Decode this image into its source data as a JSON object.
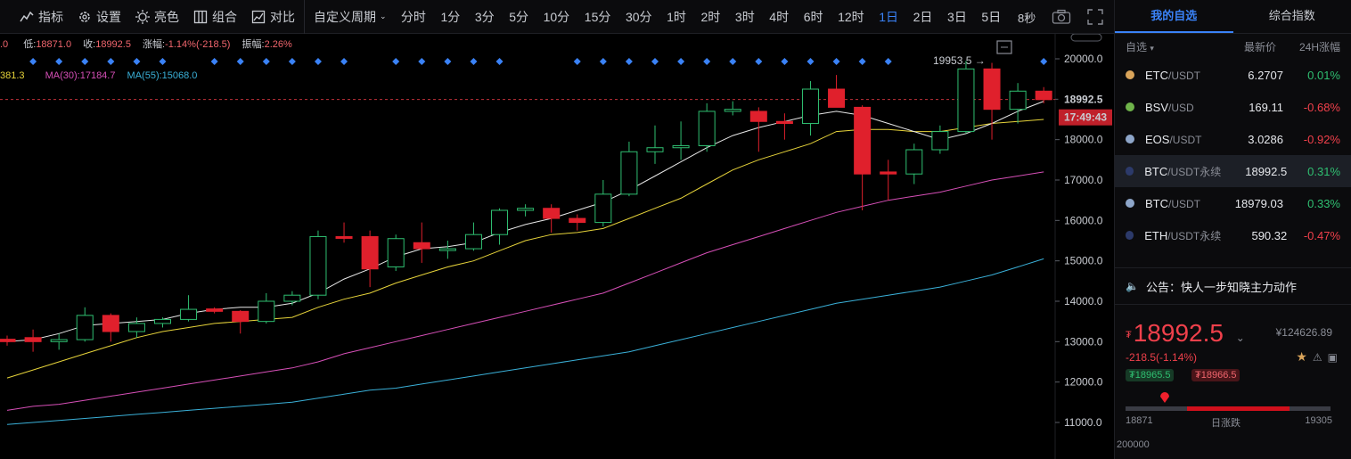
{
  "toolbar": {
    "buttons": [
      {
        "label": "指标",
        "icon": "indicator-icon"
      },
      {
        "label": "设置",
        "icon": "gear-icon"
      },
      {
        "label": "亮色",
        "icon": "sun-icon"
      },
      {
        "label": "组合",
        "icon": "layout-icon"
      },
      {
        "label": "对比",
        "icon": "compare-icon"
      }
    ],
    "custom_period": "自定义周期",
    "periods": [
      "分时",
      "1分",
      "3分",
      "5分",
      "10分",
      "15分",
      "30分",
      "1时",
      "2时",
      "3时",
      "4时",
      "6时",
      "12时",
      "1日",
      "2日",
      "3日",
      "5日"
    ],
    "active_period": "1日",
    "refresh": "8秒"
  },
  "info": {
    "open_tail": ".0",
    "low_label": "低:",
    "low": "18871.0",
    "close_label": "收:",
    "close": "18992.5",
    "chg_label": "涨幅:",
    "chg": "-1.14%(-218.5)",
    "amp_label": "振幅:",
    "amp": "2.26%"
  },
  "ma_legend": [
    {
      "text": "381.3",
      "color": "#e6d33a"
    },
    {
      "text": "MA(30):17184.7",
      "color": "#d64fb7"
    },
    {
      "text": "MA(55):15068.0",
      "color": "#3ab0d8"
    }
  ],
  "chart_data": {
    "type": "candlestick",
    "y_ticks": [
      "20000.0",
      "19000.0",
      "18000.0",
      "17000.0",
      "16000.0",
      "15000.0",
      "14000.0",
      "13000.0",
      "12000.0",
      "11000.0"
    ],
    "ylim": [
      10600,
      20250
    ],
    "current_price": "18992.5",
    "countdown": "17:49:43",
    "high_annotation": "19953.5",
    "candles": [
      {
        "o": 13060,
        "h": 13150,
        "l": 12900,
        "c": 13000
      },
      {
        "o": 13100,
        "h": 13300,
        "l": 12750,
        "c": 13000
      },
      {
        "o": 13000,
        "h": 13200,
        "l": 12800,
        "c": 13050
      },
      {
        "o": 13050,
        "h": 13850,
        "l": 13000,
        "c": 13650
      },
      {
        "o": 13650,
        "h": 13700,
        "l": 13000,
        "c": 13250
      },
      {
        "o": 13250,
        "h": 13600,
        "l": 13100,
        "c": 13450
      },
      {
        "o": 13450,
        "h": 13600,
        "l": 13350,
        "c": 13550
      },
      {
        "o": 13550,
        "h": 14150,
        "l": 13500,
        "c": 13800
      },
      {
        "o": 13810,
        "h": 13850,
        "l": 13700,
        "c": 13750
      },
      {
        "o": 13750,
        "h": 13780,
        "l": 13200,
        "c": 13500
      },
      {
        "o": 13500,
        "h": 14200,
        "l": 13450,
        "c": 14000
      },
      {
        "o": 14000,
        "h": 14250,
        "l": 13900,
        "c": 14150
      },
      {
        "o": 14150,
        "h": 15750,
        "l": 14050,
        "c": 15600
      },
      {
        "o": 15600,
        "h": 15950,
        "l": 15450,
        "c": 15580
      },
      {
        "o": 15600,
        "h": 15750,
        "l": 14350,
        "c": 14800
      },
      {
        "o": 14850,
        "h": 15650,
        "l": 14750,
        "c": 15550
      },
      {
        "o": 15450,
        "h": 15950,
        "l": 14950,
        "c": 15300
      },
      {
        "o": 15300,
        "h": 15500,
        "l": 15050,
        "c": 15300
      },
      {
        "o": 15300,
        "h": 15950,
        "l": 15250,
        "c": 15650
      },
      {
        "o": 15650,
        "h": 16300,
        "l": 15400,
        "c": 16250
      },
      {
        "o": 16250,
        "h": 16400,
        "l": 16100,
        "c": 16300
      },
      {
        "o": 16300,
        "h": 16400,
        "l": 15700,
        "c": 16050
      },
      {
        "o": 16050,
        "h": 16150,
        "l": 15750,
        "c": 15950
      },
      {
        "o": 15950,
        "h": 17000,
        "l": 15850,
        "c": 16650
      },
      {
        "o": 16650,
        "h": 17950,
        "l": 16600,
        "c": 17700
      },
      {
        "o": 17700,
        "h": 18350,
        "l": 17400,
        "c": 17800
      },
      {
        "o": 17800,
        "h": 18450,
        "l": 17500,
        "c": 17850
      },
      {
        "o": 17850,
        "h": 18900,
        "l": 17700,
        "c": 18700
      },
      {
        "o": 18700,
        "h": 18950,
        "l": 18600,
        "c": 18750
      },
      {
        "o": 18700,
        "h": 18800,
        "l": 17700,
        "c": 18450
      },
      {
        "o": 18450,
        "h": 18650,
        "l": 18000,
        "c": 18400
      },
      {
        "o": 18400,
        "h": 19450,
        "l": 18100,
        "c": 19250
      },
      {
        "o": 19250,
        "h": 19600,
        "l": 18800,
        "c": 18800
      },
      {
        "o": 18800,
        "h": 18850,
        "l": 16250,
        "c": 17150
      },
      {
        "o": 17200,
        "h": 17500,
        "l": 16500,
        "c": 17150
      },
      {
        "o": 17150,
        "h": 17900,
        "l": 16900,
        "c": 17750
      },
      {
        "o": 17750,
        "h": 18350,
        "l": 17650,
        "c": 18200
      },
      {
        "o": 18200,
        "h": 19950,
        "l": 18150,
        "c": 19750
      },
      {
        "o": 19750,
        "h": 19900,
        "l": 18000,
        "c": 18750
      },
      {
        "o": 18750,
        "h": 19400,
        "l": 18400,
        "c": 19200
      },
      {
        "o": 19200,
        "h": 19300,
        "l": 18900,
        "c": 18990
      }
    ],
    "ma_short": [
      13000,
      13050,
      13200,
      13400,
      13450,
      13500,
      13550,
      13700,
      13800,
      13850,
      13850,
      13950,
      14200,
      14550,
      14800,
      15100,
      15300,
      15350,
      15450,
      15700,
      15900,
      16050,
      16250,
      16450,
      16750,
      17100,
      17450,
      17800,
      18100,
      18300,
      18450,
      18600,
      18700,
      18600,
      18400,
      18200,
      18000,
      18150,
      18400,
      18700,
      18950
    ],
    "ma_mid": [
      12100,
      12300,
      12500,
      12700,
      12900,
      13100,
      13250,
      13350,
      13450,
      13500,
      13550,
      13600,
      13850,
      14050,
      14200,
      14450,
      14650,
      14850,
      15000,
      15250,
      15500,
      15650,
      15700,
      15800,
      16050,
      16300,
      16550,
      16900,
      17250,
      17500,
      17700,
      17900,
      18200,
      18250,
      18250,
      18200,
      18200,
      18300,
      18400,
      18450,
      18500
    ],
    "ma30": [
      11300,
      11400,
      11450,
      11550,
      11650,
      11750,
      11850,
      11950,
      12050,
      12150,
      12250,
      12350,
      12500,
      12700,
      12850,
      13000,
      13150,
      13300,
      13450,
      13600,
      13750,
      13900,
      14050,
      14200,
      14450,
      14700,
      14950,
      15200,
      15400,
      15600,
      15800,
      16000,
      16200,
      16350,
      16500,
      16600,
      16700,
      16850,
      17000,
      17100,
      17200
    ],
    "ma55": [
      10950,
      11000,
      11050,
      11100,
      11150,
      11200,
      11250,
      11300,
      11350,
      11400,
      11450,
      11500,
      11600,
      11700,
      11800,
      11850,
      11950,
      12050,
      12150,
      12250,
      12350,
      12450,
      12550,
      12650,
      12750,
      12900,
      13050,
      13200,
      13350,
      13500,
      13650,
      13800,
      13950,
      14050,
      14150,
      14250,
      14350,
      14500,
      14650,
      14850,
      15050
    ],
    "signal_markers": [
      1,
      2,
      3,
      4,
      5,
      6,
      8,
      9,
      10,
      11,
      12,
      13,
      15,
      16,
      17,
      18,
      19,
      22,
      23,
      24,
      25,
      26,
      27,
      28,
      29,
      30,
      31,
      32,
      33,
      34,
      40
    ]
  },
  "panel": {
    "tabs": [
      "我的自选",
      "综合指数"
    ],
    "active_tab": "我的自选",
    "list_header": {
      "name": "自选",
      "price": "最新价",
      "change": "24H涨幅"
    },
    "rows": [
      {
        "base": "ETC",
        "quote": "/USDT",
        "price": "6.2707",
        "change": "0.01%",
        "price_dir": "down",
        "dir": "up",
        "icon_color": "#d9a45a",
        "selected": false
      },
      {
        "base": "BSV",
        "quote": "/USD",
        "price": "169.11",
        "change": "-0.68%",
        "price_dir": "",
        "dir": "down",
        "icon_color": "#6fb34a",
        "selected": false
      },
      {
        "base": "EOS",
        "quote": "/USDT",
        "price": "3.0286",
        "change": "-0.92%",
        "price_dir": "",
        "dir": "down",
        "icon_color": "#8ea6c9",
        "selected": false
      },
      {
        "base": "BTC",
        "quote": "/USDT永续",
        "price": "18992.5",
        "change": "0.31%",
        "price_dir": "",
        "dir": "up",
        "icon_color": "#2c3a6a",
        "selected": true
      },
      {
        "base": "BTC",
        "quote": "/USDT",
        "price": "18979.03",
        "change": "0.33%",
        "price_dir": "",
        "dir": "up",
        "icon_color": "#8ea6c9",
        "selected": false
      },
      {
        "base": "ETH",
        "quote": "/USDT永续",
        "price": "590.32",
        "change": "-0.47%",
        "price_dir": "",
        "dir": "down",
        "icon_color": "#2c3a6a",
        "selected": false
      }
    ],
    "notice": "公告：快人一步知晓主力动作",
    "quote": {
      "currency": "₮",
      "price": "18992.5",
      "cny": "¥124626.89",
      "change": "-218.5(-1.14%)",
      "bid": "₮18965.5",
      "ask": "₮18966.5",
      "low": "18871",
      "high": "19305",
      "range_label": "日涨跌",
      "range_marker": 0.19
    },
    "sub_axis": "200000"
  }
}
